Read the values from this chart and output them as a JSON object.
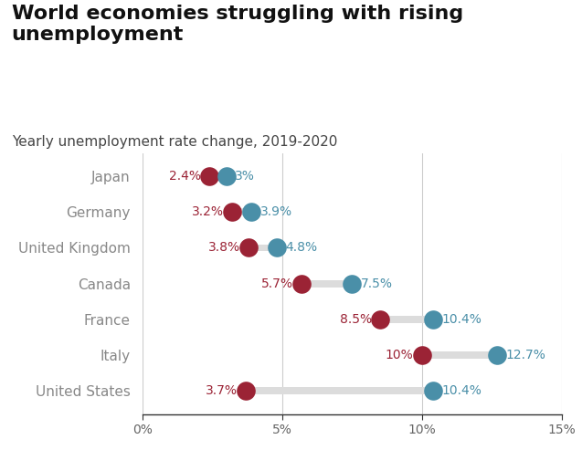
{
  "title": "World economies struggling with rising\nunemployment",
  "subtitle": "Yearly unemployment rate change, 2019-2020",
  "countries": [
    "Japan",
    "Germany",
    "United Kingdom",
    "Canada",
    "France",
    "Italy",
    "United States"
  ],
  "values_2019": [
    2.4,
    3.2,
    3.8,
    5.7,
    8.5,
    10.0,
    3.7
  ],
  "values_2020": [
    3.0,
    3.9,
    4.8,
    7.5,
    10.4,
    12.7,
    10.4
  ],
  "labels_2019": [
    "2.4%",
    "3.2%",
    "3.8%",
    "5.7%",
    "8.5%",
    "10%",
    "3.7%"
  ],
  "labels_2020": [
    "3%",
    "3.9%",
    "4.8%",
    "7.5%",
    "10.4%",
    "12.7%",
    "10.4%"
  ],
  "color_2019": "#9B2335",
  "color_2020": "#4A8FA8",
  "bar_color": "#DCDCDC",
  "background_color": "#FFFFFF",
  "xlim": [
    0,
    15
  ],
  "xticks": [
    0,
    5,
    10,
    15
  ],
  "xticklabels": [
    "0%",
    "5%",
    "10%",
    "15%"
  ],
  "dot_size": 220,
  "bar_height": 0.2,
  "title_fontsize": 16,
  "subtitle_fontsize": 11,
  "label_fontsize": 10,
  "country_fontsize": 11,
  "title_color": "#111111",
  "subtitle_color": "#444444",
  "country_color": "#888888",
  "xtick_color": "#666666",
  "vline_color": "#CCCCCC",
  "bottom_spine_color": "#333333"
}
